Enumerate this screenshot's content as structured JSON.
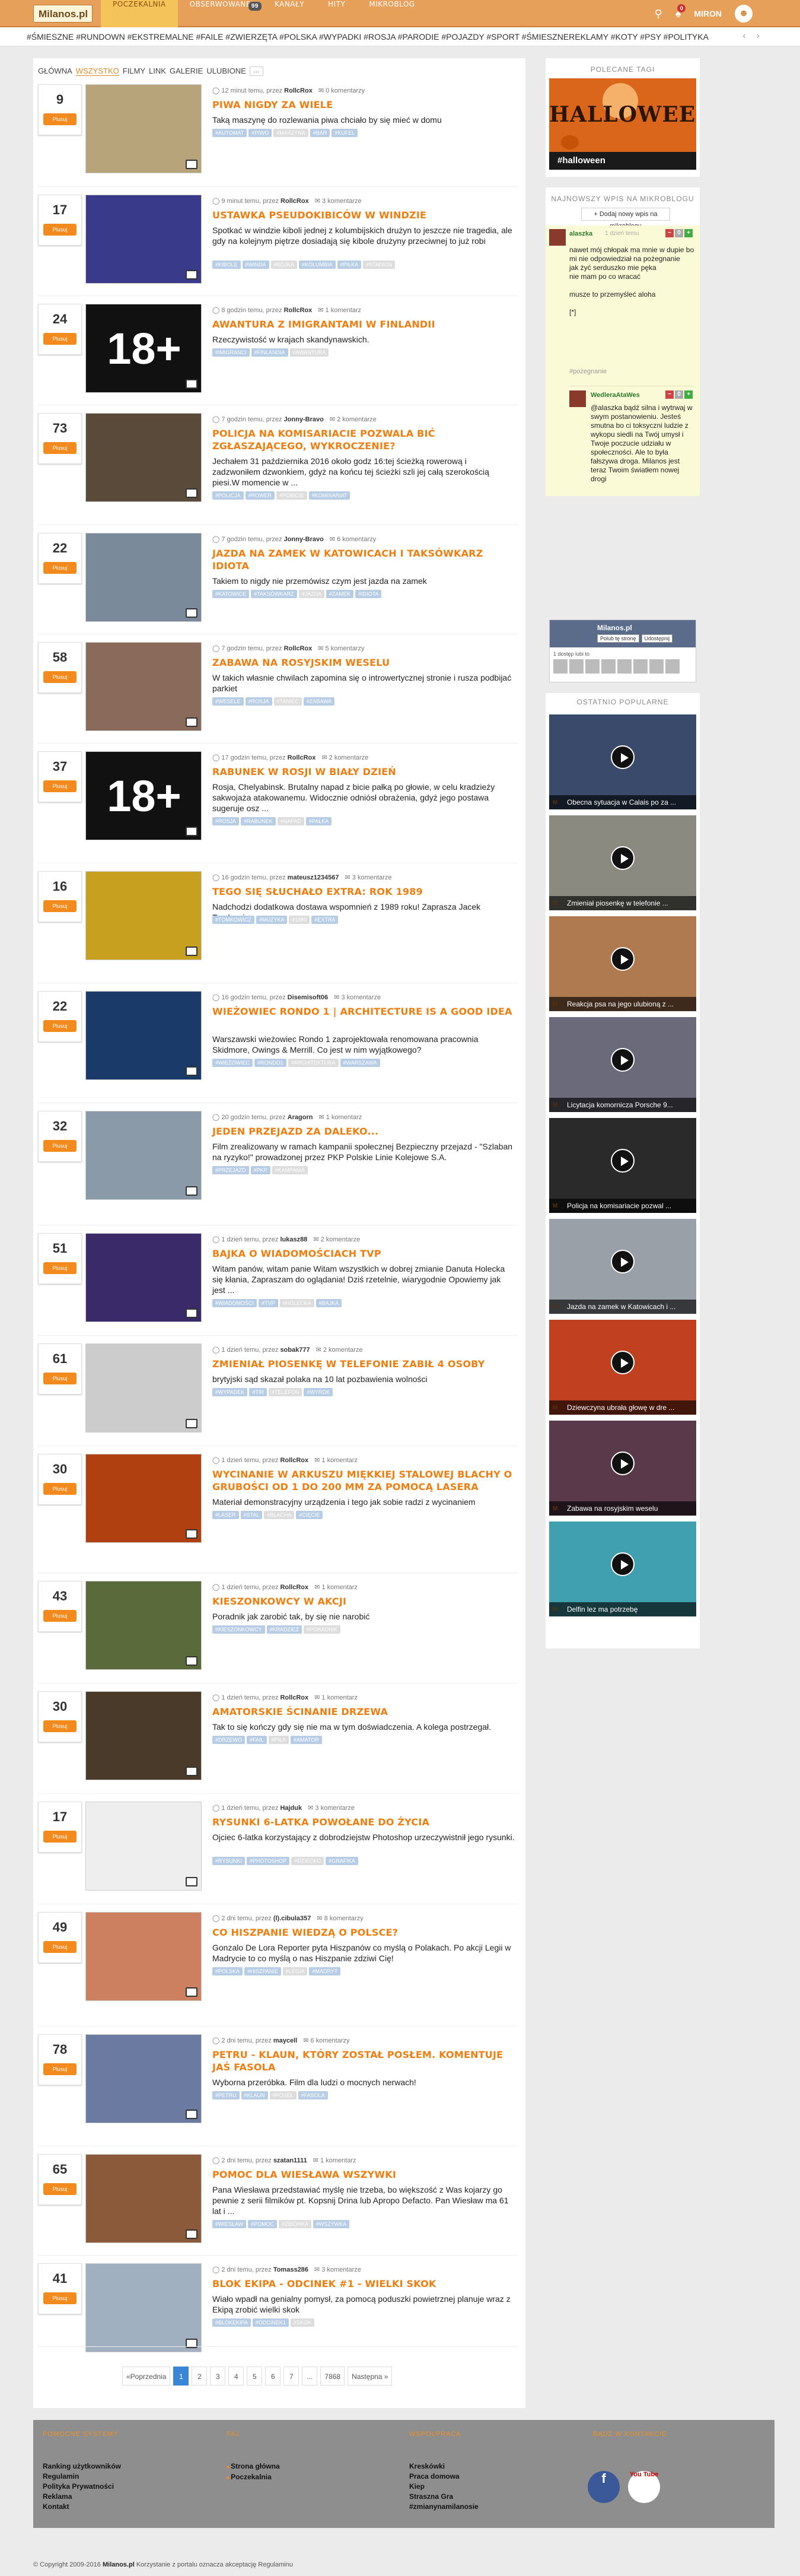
{
  "topbar": {
    "logo": "Milanos.pl",
    "nav": [
      "POCZEKALNIA",
      "OBSERWOWANE",
      "KANAŁY",
      "HITY",
      "MIKROBLOG"
    ],
    "nav_badge": "99",
    "notif_count": "0",
    "user": "MIRON"
  },
  "tagbar": {
    "tags": "#ŚMIESZNE #RUNDOWN #EKSTREMALNE #FAILE #ZWIERZĘTA #POLSKA #WYPADKI #ROSJA #PARODIE #POJAZDY #SPORT #ŚMIESZNEREKLAMY #KOTY #PSY #POLITYKA"
  },
  "filter": {
    "items": [
      "GŁÓWNA",
      "WSZYSTKO",
      "FILMY",
      "LINK",
      "GALERIE",
      "ULUBIONE"
    ],
    "more": "…"
  },
  "vote_label": "Plusuj",
  "posts": [
    {
      "score": "9",
      "meta_pre": "12 minut temu, przez",
      "author": "RollcRox",
      "comments": "0 komentarzy",
      "title": "PIWA NIGDY ZA WIELE",
      "desc": "Taką maszynę do rozlewania piwa chciało by się mieć w domu",
      "tags": [
        "#AUTOMAT",
        "#PIWO",
        "#MASZYNA",
        "#BAR",
        "#KUFEL"
      ]
    },
    {
      "score": "17",
      "meta_pre": "9 minut temu, przez",
      "author": "RollcRox",
      "comments": "3 komentarze",
      "title": "USTAWKA PSEUDOKIBICÓW W WINDZIE",
      "desc": "Spotkać w windzie kiboli jednej z kolumbijskich drużyn to jeszcze nie tragedia, ale gdy na kolejnym piętrze dosiadają się kibole drużyny przeciwnej to już robi",
      "tags": [
        "#KIBOLE",
        "#WINDA",
        "#BÓJKA",
        "#KOLUMBIA",
        "#PIŁKA",
        "#STADION"
      ]
    },
    {
      "score": "24",
      "meta_pre": "8 godzin temu, przez",
      "author": "RollcRox",
      "comments": "1 komentarz",
      "title": "AWANTURA Z IMIGRANTAMI W FINLANDII",
      "desc": "Rzeczywistość w krajach skandynawskich.",
      "tags": [
        "#IMIGRANCI",
        "#FINLANDIA",
        "#AWANTURA"
      ]
    },
    {
      "score": "73",
      "meta_pre": "7 godzin temu, przez",
      "author": "Jonny-Bravo",
      "comments": "2 komentarze",
      "title": "POLICJA NA KOMISARIACIE POZWALA BIĆ ZGŁASZAJĄCEGO, WYKROCZENIE?",
      "desc": "Jechałem 31 października 2016 około godz 16:tej ścieżką rowerową i zadzwoniłem dzwonkiem, gdyż na końcu tej ścieżki szli jej całą szerokością piesi.W momencie w ...",
      "tags": [
        "#POLICJA",
        "#ROWER",
        "#POBICIE",
        "#KOMISARIAT"
      ]
    },
    {
      "score": "22",
      "meta_pre": "7 godzin temu, przez",
      "author": "Jonny-Bravo",
      "comments": "6 komentarzy",
      "title": "JAZDA NA ZAMEK W KATOWICACH I TAKSÓWKARZ IDIOTA",
      "desc": "Takiem to nigdy nie przemówisz czym jest jazda na zamek",
      "tags": [
        "#KATOWICE",
        "#TAKSÓWKARZ",
        "#JAZDA",
        "#ZAMEK",
        "#IDIOTA"
      ]
    },
    {
      "score": "58",
      "meta_pre": "7 godzin temu, przez",
      "author": "RollcRox",
      "comments": "5 komentarzy",
      "title": "ZABAWA NA ROSYJSKIM WESELU",
      "desc": "W takich własnie chwilach zapomina się o introwertycznej stronie i rusza podbijać parkiet",
      "tags": [
        "#WESELE",
        "#ROSJA",
        "#TANIEC",
        "#ZABAWA"
      ]
    },
    {
      "score": "37",
      "meta_pre": "17 godzin temu, przez",
      "author": "RollcRox",
      "comments": "2 komentarze",
      "title": "RABUNEK W ROSJI W BIAŁY DZIEŃ",
      "desc": "Rosja, Chelyabinsk. Brutalny napad z bicie pałką po głowie, w celu kradzieży sakwojaża atakowanemu. Widocznie odniósł obrażenia, gdyż jego postawa sugeruje osz ...",
      "tags": [
        "#ROSJA",
        "#RABUNEK",
        "#NAPAD",
        "#PAŁKA"
      ]
    },
    {
      "score": "16",
      "meta_pre": "16 godzin temu, przez",
      "author": "mateusz1234567",
      "comments": "3 komentarze",
      "title": "TEGO SIĘ SŁUCHAŁO EXTRA: ROK 1989",
      "desc": "Nadchodzi dodatkowa dostawa wspomnień z 1989 roku! Zaprasza Jacek Tomkowicz.",
      "tags": [
        "#TOMKOWICZ",
        "#MUZYKA",
        "#1989",
        "#EXTRA"
      ]
    },
    {
      "score": "22",
      "meta_pre": "16 godzin temu, przez",
      "author": "Disemisoft06",
      "comments": "3 komentarze",
      "title": "WIEŻOWIEC RONDO 1 | ARCHITECTURE IS A GOOD IDEA",
      "desc": "Warszawski wieżowiec Rondo 1 zaprojektowała renomowana pracownia Skidmore, Owings & Merrill. Co jest w nim wyjątkowego?",
      "tags": [
        "#WIEŻOWIEC",
        "#RONDO1",
        "#ARCHITEKTURA",
        "#WARSZAWA"
      ]
    },
    {
      "score": "32",
      "meta_pre": "20 godzin temu, przez",
      "author": "Aragorn",
      "comments": "1 komentarz",
      "title": "JEDEN PRZEJAZD ZA DALEKO...",
      "desc": "Film zrealizowany w ramach kampanii społecznej Bezpieczny przejazd - \"Szlaban na ryzyko!\" prowadzonej przez PKP Polskie Linie Kolejowe S.A.",
      "tags": [
        "#PRZEJAZD",
        "#PKP",
        "#KAMPANIA"
      ]
    },
    {
      "score": "51",
      "meta_pre": "1 dzień temu, przez",
      "author": "lukasz88",
      "comments": "2 komentarze",
      "title": "BAJKA O WIADOMOŚCIACH TVP",
      "desc": "Witam panów, witam panie Witam wszystkich w dobrej zmianie Danuta Holecka się kłania, Zapraszam do oglądania! Dziś rzetelnie, wiarygodnie Opowiemy jak jest ...",
      "tags": [
        "#WIADOMOŚCI",
        "#TVP",
        "#HOLECKA",
        "#BAJKA"
      ]
    },
    {
      "score": "61",
      "meta_pre": "1 dzień temu, przez",
      "author": "sobak777",
      "comments": "2 komentarze",
      "title": "ZMIENIAŁ PIOSENKĘ W TELEFONIE ZABIŁ 4 OSOBY",
      "desc": "brytyjski sąd skazał polaka na 10 lat pozbawienia wolności",
      "tags": [
        "#WYPADEK",
        "#TIR",
        "#TELEFON",
        "#WYROK"
      ]
    },
    {
      "score": "30",
      "meta_pre": "1 dzień temu, przez",
      "author": "RollcRox",
      "comments": "1 komentarz",
      "title": "WYCINANIE W ARKUSZU MIĘKKIEJ STALOWEJ BLACHY O GRUBOŚCI OD 1 DO 200 MM ZA POMOCĄ LASERA",
      "desc": "Materiał demonstracyjny urządzenia i tego jak sobie radzi z wycinaniem",
      "tags": [
        "#LASER",
        "#STAL",
        "#BLACHA",
        "#CIĘCIE"
      ]
    },
    {
      "score": "43",
      "meta_pre": "1 dzień temu, przez",
      "author": "RollcRox",
      "comments": "1 komentarz",
      "title": "KIESZONKOWCY W AKCJI",
      "desc": "Poradnik jak zarobić tak, by się nie narobić",
      "tags": [
        "#KIESZONKOWCY",
        "#KRADZIEŻ",
        "#PORADNIK"
      ]
    },
    {
      "score": "30",
      "meta_pre": "1 dzień temu, przez",
      "author": "RollcRox",
      "comments": "1 komentarz",
      "title": "AMATORSKIE ŚCINANIE DRZEWA",
      "desc": "Tak to się kończy gdy się nie ma w tym doświadczenia. A kolega postrzegał.",
      "tags": [
        "#DRZEWO",
        "#FAIL",
        "#PIŁA",
        "#AMATOR"
      ]
    },
    {
      "score": "17",
      "meta_pre": "1 dzień temu, przez",
      "author": "Hajduk",
      "comments": "3 komentarze",
      "title": "RYSUNKI 6-LATKA POWOŁANE DO ŻYCIA",
      "desc": "Ojciec 6-latka korzystający z dobrodziejstw Photoshop urzeczywistnił jego rysunki.",
      "tags": [
        "#RYSUNKI",
        "#PHOTOSHOP",
        "#DZIECKO",
        "#GRAFIKA"
      ]
    },
    {
      "score": "49",
      "meta_pre": "2 dni temu, przez",
      "author": "(l).cibula357",
      "comments": "8 komentarzy",
      "title": "CO HISZPANIE WIEDZĄ O POLSCE?",
      "desc": "Gonzalo De Lora Reporter pyta Hiszpanów co myślą o Polakach. Po akcji Legii w Madrycie to co myślą o nas Hiszpanie zdziwi Cię!",
      "tags": [
        "#POLSKA",
        "#HISZPANIE",
        "#LEGIA",
        "#MADRYT"
      ]
    },
    {
      "score": "78",
      "meta_pre": "2 dni temu, przez",
      "author": "maycell",
      "comments": "6 komentarzy",
      "title": "PETRU - KLAUN, KTÓRY ZOSTAŁ POSŁEM. KOMENTUJE JAŚ FASOLA",
      "desc": "Wyborna przeróbka. Film dla ludzi o mocnych nerwach!",
      "tags": [
        "#PETRU",
        "#KLAUN",
        "#POSEŁ",
        "#FASOLA"
      ]
    },
    {
      "score": "65",
      "meta_pre": "2 dni temu, przez",
      "author": "szatan1111",
      "comments": "1 komentarz",
      "title": "POMOC DLA WIESŁAWA WSZYWKI",
      "desc": "Pana Wiesława przedstawiać myślę nie trzeba, bo większość z Was kojarzy go pewnie z serii filmików pt. Kopsnij Drina lub Apropo Defacto. Pan Wiesław ma 61 lat i ...",
      "tags": [
        "#WIESŁAW",
        "#POMOC",
        "#ZBIÓRKA",
        "#WSZYWKA"
      ]
    },
    {
      "score": "41",
      "meta_pre": "2 dni temu, przez",
      "author": "Tomass286",
      "comments": "3 komentarze",
      "title": "BLOK EKIPA - ODCINEK #1 - WIELKI SKOK",
      "desc": "Wiało wpadł na genialny pomysł, za pomocą poduszki powietrznej planuje wraz z Ekipą zrobić wielki skok",
      "tags": [
        "#BLOKEKIPA",
        "#ODCINEK1",
        "#SKOK"
      ]
    }
  ],
  "pager": {
    "prev": "«Poprzednia",
    "pages": [
      "1",
      "2",
      "3",
      "4",
      "5",
      "6",
      "7"
    ],
    "dots": "...",
    "last": "7868",
    "next": "Następna »"
  },
  "sidebar": {
    "polecany_head": "POLECANE TAGI",
    "halloween_text": "HALLOWEEN",
    "halloween_tag": "#halloween",
    "mikroblog_head": "NAJNOWSZY WPIS NA MIKROBLOGU",
    "add_entry": "Dodaj nowy wpis na mikroblogu",
    "entry1": {
      "user": "alaszka",
      "date": "1 dzień temu",
      "text": "nawet mój chłopak ma mnie w dupie bo mi nie odpowiedział na pożegnanie\njak żyć serduszko mie pęka\nnie mam po co wracać\n\nmusze to przemyśleć aloha\n\n[*]",
      "tag": "#pożegnanie"
    },
    "entry2": {
      "user": "WedleraAtaWes",
      "text": "@alaszka  bądź silna i wytrwaj w swym postanowieniu. Jesteś smutna bo ci toksyczni ludzie z wykopu siedli na Twój umysł i Twoje poczucie udziału w społeczności. Ale to była fałszywa droga. Milanos jest teraz Twoim światłem nowej drogi"
    },
    "fb_name": "Milanos.pl",
    "fb_like": "Polub tę stronę",
    "fb_share": "Udostępnij",
    "fb_count": "1 dostęp lubi to",
    "popular_head": "OSTATNIO POPULARNE",
    "popular": [
      "Obecna sytuacja w Calais po za ...",
      "Zmieniał piosenkę w telefonie ...",
      "Reakcja psa na jego ulubioną z ...",
      "Licytacja komornicza Porsche 9...",
      "Policja na komisariacie pozwal ...",
      "Jazda na zamek w Katowicach i ...",
      "Dziewczyna ubrała głowę w dre ...",
      "Zabawa na rosyjskim weselu",
      "Delfin lez ma potrzebę"
    ]
  },
  "footer": {
    "h1": "POMOCNE SYSTEMY",
    "c1": [
      "Ranking użytkowników",
      "Regulamin",
      "Polityka Prywatności",
      "Reklama",
      "Kontakt"
    ],
    "h2": "FAJ",
    "c2": [
      "Strona główna",
      "Poczekalnia"
    ],
    "h3": "WSPÓŁPRACA",
    "c3": [
      "Kreskówki",
      "Praca domowa",
      "Kiep",
      "Straszna Gra",
      "#zmianynamilanosie"
    ],
    "h4": "BĄDŹ W KONTAKCIE",
    "fb": "f",
    "yt": "You Tube",
    "copyright_pre": "© Copyright 2009-2016",
    "copyright_brand": "Milanos.pl",
    "copyright_post": "Korzystanie z portalu oznacza akceptację Regulaminu"
  },
  "colors": {
    "accent": "#f07d0e",
    "topbar": "#e6a05a",
    "tag": "#b7cde6",
    "pager_active": "#3a86d6"
  }
}
